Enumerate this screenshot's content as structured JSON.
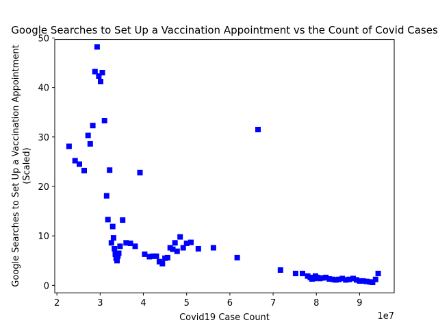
{
  "chart_data": {
    "type": "scatter",
    "title": "Google Searches to Set Up a Vaccination Appointment vs the Count of Covid Cases",
    "xlabel": "Covid19 Case Count",
    "ylabel_lines": [
      "Google Searches to Set Up a Vaccination Appointment",
      "(Scaled)"
    ],
    "x_offset_label": "1e7",
    "xlim": [
      1.95,
      9.8
    ],
    "ylim": [
      -1.5,
      49.7
    ],
    "xticks": [
      2,
      3,
      4,
      5,
      6,
      7,
      8,
      9
    ],
    "yticks": [
      0,
      10,
      20,
      30,
      40,
      50
    ],
    "marker": "square",
    "color": "#0000ff",
    "grid": false,
    "points": [
      [
        2.28,
        28.1
      ],
      [
        2.42,
        25.2
      ],
      [
        2.52,
        24.5
      ],
      [
        2.63,
        23.2
      ],
      [
        2.72,
        30.3
      ],
      [
        2.77,
        28.6
      ],
      [
        2.83,
        32.3
      ],
      [
        2.88,
        43.2
      ],
      [
        2.93,
        48.2
      ],
      [
        2.97,
        42.3
      ],
      [
        3.01,
        41.2
      ],
      [
        3.05,
        43.0
      ],
      [
        3.1,
        33.3
      ],
      [
        3.15,
        18.1
      ],
      [
        3.18,
        13.3
      ],
      [
        3.22,
        23.3
      ],
      [
        3.26,
        8.6
      ],
      [
        3.29,
        11.9
      ],
      [
        3.31,
        9.6
      ],
      [
        3.33,
        7.4
      ],
      [
        3.35,
        6.3
      ],
      [
        3.37,
        5.5
      ],
      [
        3.39,
        5.0
      ],
      [
        3.41,
        5.9
      ],
      [
        3.43,
        6.5
      ],
      [
        3.46,
        7.9
      ],
      [
        3.52,
        13.2
      ],
      [
        3.6,
        8.6
      ],
      [
        3.7,
        8.5
      ],
      [
        3.81,
        7.9
      ],
      [
        3.92,
        22.8
      ],
      [
        4.03,
        6.3
      ],
      [
        4.14,
        5.8
      ],
      [
        4.22,
        5.9
      ],
      [
        4.3,
        5.9
      ],
      [
        4.37,
        4.8
      ],
      [
        4.44,
        4.4
      ],
      [
        4.5,
        5.5
      ],
      [
        4.56,
        5.6
      ],
      [
        4.62,
        7.6
      ],
      [
        4.68,
        7.3
      ],
      [
        4.73,
        8.6
      ],
      [
        4.78,
        6.9
      ],
      [
        4.85,
        9.8
      ],
      [
        4.92,
        7.6
      ],
      [
        5.0,
        8.5
      ],
      [
        5.1,
        8.7
      ],
      [
        5.27,
        7.4
      ],
      [
        5.62,
        7.6
      ],
      [
        6.17,
        5.6
      ],
      [
        6.65,
        31.5
      ],
      [
        7.17,
        3.1
      ],
      [
        7.52,
        2.4
      ],
      [
        7.68,
        2.4
      ],
      [
        7.8,
        1.9
      ],
      [
        7.86,
        1.6
      ],
      [
        7.9,
        1.3
      ],
      [
        7.95,
        1.4
      ],
      [
        7.98,
        1.9
      ],
      [
        8.02,
        1.6
      ],
      [
        8.08,
        1.4
      ],
      [
        8.15,
        1.5
      ],
      [
        8.22,
        1.6
      ],
      [
        8.3,
        1.3
      ],
      [
        8.38,
        1.2
      ],
      [
        8.45,
        1.1
      ],
      [
        8.52,
        1.2
      ],
      [
        8.6,
        1.4
      ],
      [
        8.68,
        1.1
      ],
      [
        8.76,
        1.2
      ],
      [
        8.85,
        1.4
      ],
      [
        8.93,
        1.1
      ],
      [
        9.0,
        0.9
      ],
      [
        9.08,
        0.9
      ],
      [
        9.16,
        0.8
      ],
      [
        9.24,
        0.7
      ],
      [
        9.3,
        0.6
      ],
      [
        9.37,
        1.2
      ],
      [
        9.43,
        2.4
      ]
    ]
  }
}
